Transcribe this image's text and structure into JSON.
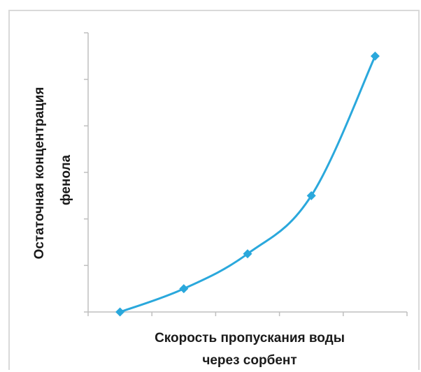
{
  "chart_data": {
    "type": "line",
    "title": "",
    "xlabel_lines": [
      "Скорость пропускания воды",
      "через сорбент"
    ],
    "ylabel_lines": [
      "Остаточная концентрация",
      "фенола"
    ],
    "x": [
      1,
      2,
      3,
      4,
      5
    ],
    "series": [
      {
        "values": [
          0.0,
          0.5,
          1.25,
          2.5,
          5.5
        ]
      }
    ],
    "xlim": [
      0.5,
      5.5
    ],
    "ylim": [
      0,
      6
    ],
    "grid": false,
    "tick_labels_shown": false,
    "line_color": "#2aa8dc",
    "marker": "diamond"
  }
}
